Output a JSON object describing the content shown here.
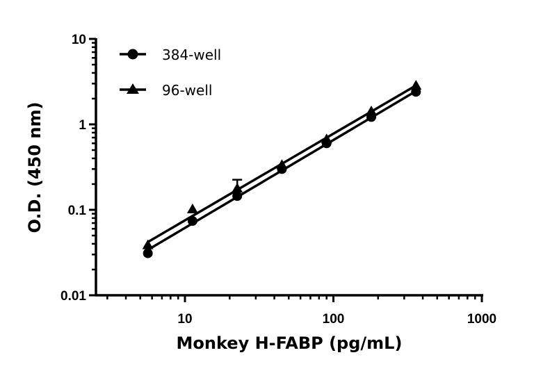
{
  "chart_data": {
    "type": "line",
    "title": "",
    "xlabel": "Monkey H-FABP (pg/mL)",
    "ylabel": "O.D. (450 nm)",
    "xscale": "log",
    "yscale": "log",
    "xlim": [
      2.5,
      1000
    ],
    "ylim": [
      0.01,
      10
    ],
    "x_ticks": [
      10,
      100,
      1000
    ],
    "x_tick_labels": [
      "10",
      "100",
      "1000"
    ],
    "y_ticks": [
      0.01,
      0.1,
      1,
      10
    ],
    "y_tick_labels": [
      "0.01",
      "0.1",
      "1",
      "10"
    ],
    "grid": false,
    "legend_position": "upper-left",
    "x": [
      5.625,
      11.25,
      22.5,
      45,
      90,
      180,
      360
    ],
    "series": [
      {
        "name": "384-well",
        "marker": "circle",
        "values": [
          0.031,
          0.074,
          0.145,
          0.3,
          0.6,
          1.22,
          2.4
        ],
        "fit_line": {
          "x_start": 5.625,
          "y_start": 0.034,
          "x_end": 360,
          "y_end": 2.45
        }
      },
      {
        "name": "96-well",
        "marker": "triangle",
        "values": [
          0.038,
          0.1,
          0.175,
          0.33,
          0.66,
          1.4,
          2.8
        ],
        "error_bars": [
          null,
          null,
          0.05,
          null,
          null,
          null,
          null
        ],
        "fit_line": {
          "x_start": 5.625,
          "y_start": 0.042,
          "x_end": 360,
          "y_end": 2.85
        }
      }
    ]
  },
  "legend": {
    "items": [
      {
        "label": "384-well",
        "marker": "circle"
      },
      {
        "label": "96-well",
        "marker": "triangle"
      }
    ]
  },
  "colors": {
    "ink": "#000000",
    "background": "#ffffff"
  }
}
